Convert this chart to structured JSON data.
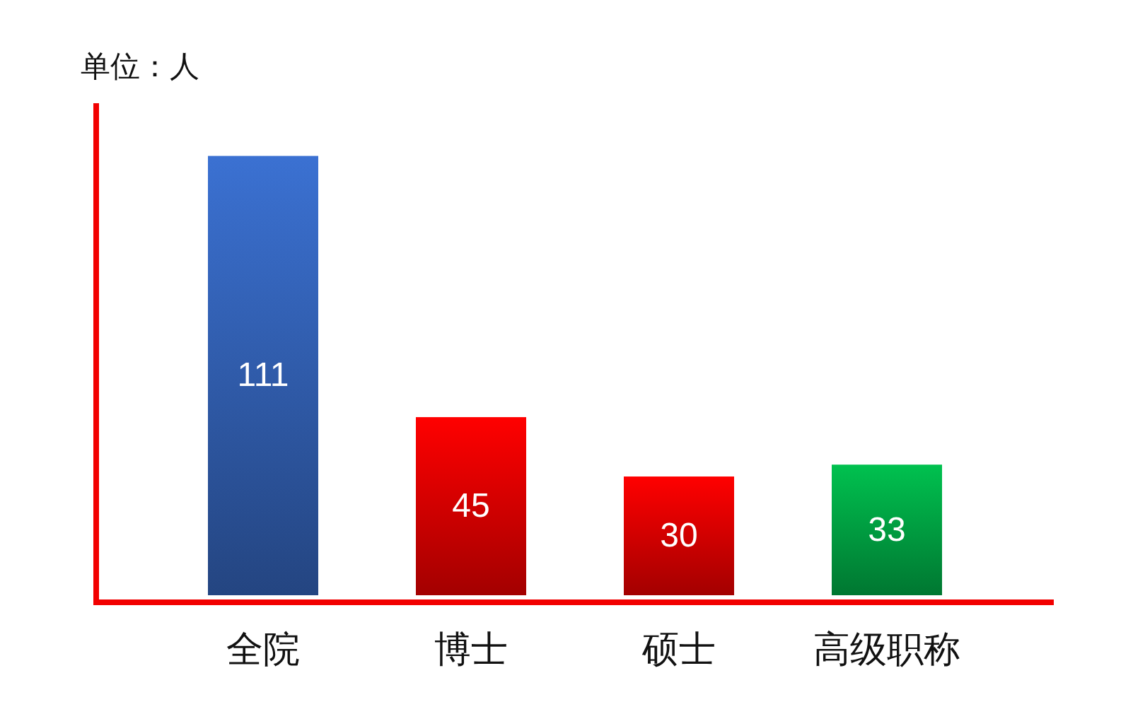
{
  "chart_data": {
    "type": "bar",
    "ylabel": "单位：人",
    "categories": [
      "全院",
      "博士",
      "硕士",
      "高级职称"
    ],
    "values": [
      111,
      45,
      30,
      33
    ],
    "colors": [
      "#2f5aa8",
      "#d40000",
      "#d40000",
      "#009a3f"
    ],
    "data_labels": true,
    "grid": false,
    "legend": false
  }
}
